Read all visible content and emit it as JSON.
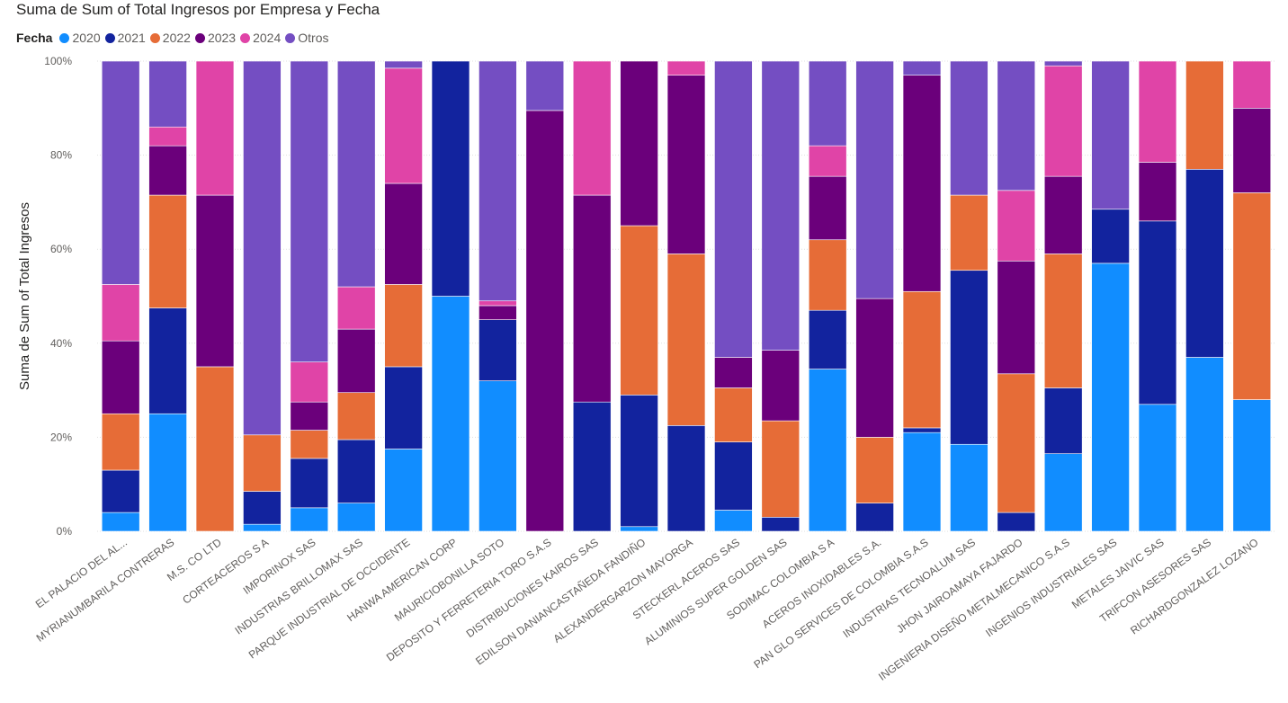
{
  "chart_data": {
    "type": "bar",
    "stacked": "percent",
    "title": "Suma de Sum of Total Ingresos por Empresa y Fecha",
    "legend_title": "Fecha",
    "xlabel": "",
    "ylabel": "Suma de Sum of Total Ingresos",
    "ylim": [
      0,
      100
    ],
    "yticks": [
      "0%",
      "20%",
      "40%",
      "60%",
      "80%",
      "100%"
    ],
    "categories": [
      "EL PALACIO DEL AL...",
      "MYRIANUMBARILA CONTRERAS",
      "M.S. CO LTD",
      "CORTEACEROS S A",
      "IMPORINOX SAS",
      "INDUSTRIAS BRILLOMAX SAS",
      "PARQUE INDUSTRIAL DE OCCIDENTE",
      "HANWA AMERICAN CORP",
      "MAURICIOBONILLA SOTO",
      "DEPOSITO Y FERRETERIA TORO S.A.S",
      "DISTRIBUCIONES KAIROS SAS",
      "EDILSON DANIANCASTAÑEDA FANDIÑO",
      "ALEXANDERGARZON MAYORGA",
      "STECKERL ACEROS SAS",
      "ALUMINIOS SUPER GOLDEN SAS",
      "SODIMAC COLOMBIA S A",
      "ACEROS INOXIDABLES S.A.",
      "PAN GLO SERVICES DE COLOMBIA S.A.S",
      "INDUSTRIAS TECNOALUM SAS",
      "JHON JAIROAMAYA FAJARDO",
      "INGENIERIA DISEÑO METALMECANICO S.A.S",
      "INGENIOS INDUSTRIALES SAS",
      "METALES JAIVIC SAS",
      "TRIFCON ASESORES SAS",
      "RICHARDGONZALEZ LOZANO"
    ],
    "series": [
      {
        "name": "2020",
        "color": "#118DFF",
        "values": [
          4,
          25,
          0,
          1.5,
          5,
          6,
          17.5,
          50,
          32,
          0,
          0,
          1,
          0,
          4.5,
          0,
          34.5,
          0,
          21,
          18.5,
          0,
          16.5,
          57,
          27,
          37,
          28
        ]
      },
      {
        "name": "2021",
        "color": "#12239E",
        "values": [
          9,
          22.5,
          0,
          7,
          10.5,
          13.5,
          17.5,
          50,
          13,
          0,
          27.5,
          28,
          22.5,
          14.5,
          3,
          12.5,
          6,
          1,
          37,
          4,
          14,
          11.5,
          39,
          40,
          0
        ]
      },
      {
        "name": "2022",
        "color": "#E66C37",
        "values": [
          12,
          24,
          35,
          12,
          6,
          10,
          17.5,
          0,
          0,
          0,
          0,
          36,
          36.5,
          11.5,
          20.5,
          15,
          14,
          29,
          16,
          29.5,
          28.5,
          0,
          0,
          23,
          44
        ]
      },
      {
        "name": "2023",
        "color": "#6B007B",
        "values": [
          15.5,
          10.5,
          36.5,
          0,
          6,
          13.5,
          21.5,
          0,
          3,
          89.5,
          44,
          35,
          38,
          6.5,
          15,
          13.5,
          29.5,
          46,
          0,
          24,
          16.5,
          0,
          12.5,
          0,
          18
        ]
      },
      {
        "name": "2024",
        "color": "#E044A7",
        "values": [
          12,
          4,
          28.5,
          0,
          8.5,
          9,
          24.5,
          0,
          1,
          0,
          28.5,
          0,
          3,
          0,
          0,
          6.5,
          0,
          0,
          0,
          15,
          23.5,
          0,
          21.5,
          0,
          10
        ]
      },
      {
        "name": "Otros",
        "color": "#744EC2",
        "values": [
          47.5,
          14,
          0,
          79.5,
          64,
          48,
          1.5,
          0,
          51,
          10.5,
          0,
          0,
          0,
          63,
          61.5,
          18,
          50.5,
          3,
          28.5,
          27.5,
          1,
          31.5,
          0,
          0,
          0
        ]
      }
    ]
  }
}
